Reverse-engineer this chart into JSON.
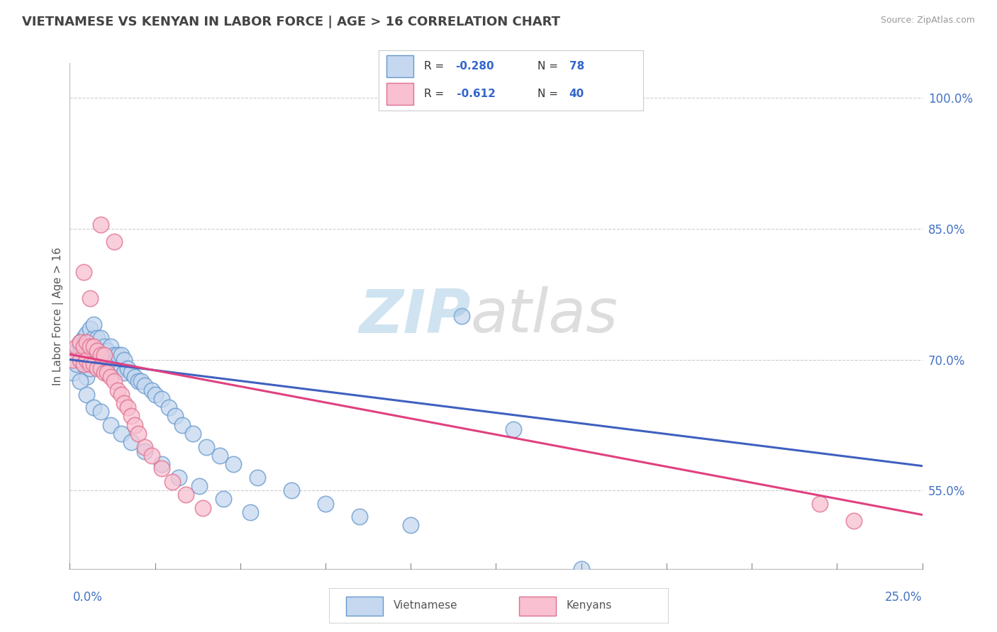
{
  "title": "VIETNAMESE VS KENYAN IN LABOR FORCE | AGE > 16 CORRELATION CHART",
  "source_text": "Source: ZipAtlas.com",
  "ylabel": "In Labor Force | Age > 16",
  "ylabel_ticks": [
    0.55,
    0.7,
    0.85,
    1.0
  ],
  "ylabel_tick_labels": [
    "55.0%",
    "70.0%",
    "85.0%",
    "100.0%"
  ],
  "xlim": [
    0.0,
    0.25
  ],
  "ylim": [
    0.46,
    1.04
  ],
  "r_vietnamese": -0.28,
  "n_vietnamese": 78,
  "r_kenyan": -0.612,
  "n_kenyan": 40,
  "color_vietnamese_face": "#c5d8f0",
  "color_vietnamese_edge": "#6699cc",
  "color_kenyan_face": "#f8c0d0",
  "color_kenyan_edge": "#e07090",
  "line_color_vietnamese": "#4060c0",
  "line_color_kenyan": "#e04080",
  "legend_label_color": "#3366cc",
  "legend_r_label_color": "#333333",
  "watermark_zip_color": "#88bbdd",
  "watermark_atlas_color": "#aaaaaa",
  "background_color": "#ffffff",
  "grid_color": "#cccccc",
  "title_color": "#444444",
  "axis_label_color": "#4472c4",
  "viet_line_x0": 0.0,
  "viet_line_y0": 0.7,
  "viet_line_x1": 0.25,
  "viet_line_y1": 0.578,
  "ken_line_x0": 0.0,
  "ken_line_y0": 0.706,
  "ken_line_x1": 0.25,
  "ken_line_y1": 0.522,
  "vietnamese_x": [
    0.001,
    0.002,
    0.002,
    0.003,
    0.003,
    0.003,
    0.004,
    0.004,
    0.004,
    0.005,
    0.005,
    0.005,
    0.005,
    0.006,
    0.006,
    0.006,
    0.006,
    0.007,
    0.007,
    0.007,
    0.007,
    0.008,
    0.008,
    0.008,
    0.009,
    0.009,
    0.009,
    0.01,
    0.01,
    0.011,
    0.011,
    0.012,
    0.012,
    0.013,
    0.013,
    0.014,
    0.014,
    0.015,
    0.015,
    0.016,
    0.016,
    0.017,
    0.018,
    0.019,
    0.02,
    0.021,
    0.022,
    0.024,
    0.025,
    0.027,
    0.029,
    0.031,
    0.033,
    0.036,
    0.04,
    0.044,
    0.048,
    0.055,
    0.065,
    0.075,
    0.085,
    0.1,
    0.115,
    0.13,
    0.15,
    0.003,
    0.005,
    0.007,
    0.009,
    0.012,
    0.015,
    0.018,
    0.022,
    0.027,
    0.032,
    0.038,
    0.045,
    0.053
  ],
  "vietnamese_y": [
    0.685,
    0.695,
    0.71,
    0.7,
    0.715,
    0.72,
    0.695,
    0.71,
    0.725,
    0.68,
    0.7,
    0.715,
    0.73,
    0.69,
    0.705,
    0.72,
    0.735,
    0.695,
    0.71,
    0.725,
    0.74,
    0.695,
    0.71,
    0.725,
    0.695,
    0.71,
    0.725,
    0.7,
    0.715,
    0.695,
    0.71,
    0.695,
    0.715,
    0.695,
    0.705,
    0.69,
    0.705,
    0.69,
    0.705,
    0.685,
    0.7,
    0.69,
    0.685,
    0.68,
    0.675,
    0.675,
    0.67,
    0.665,
    0.66,
    0.655,
    0.645,
    0.635,
    0.625,
    0.615,
    0.6,
    0.59,
    0.58,
    0.565,
    0.55,
    0.535,
    0.52,
    0.51,
    0.75,
    0.62,
    0.46,
    0.675,
    0.66,
    0.645,
    0.64,
    0.625,
    0.615,
    0.605,
    0.595,
    0.58,
    0.565,
    0.555,
    0.54,
    0.525
  ],
  "kenyan_x": [
    0.001,
    0.002,
    0.003,
    0.003,
    0.004,
    0.004,
    0.005,
    0.005,
    0.006,
    0.006,
    0.007,
    0.007,
    0.008,
    0.008,
    0.009,
    0.009,
    0.01,
    0.01,
    0.011,
    0.012,
    0.013,
    0.014,
    0.015,
    0.016,
    0.017,
    0.018,
    0.019,
    0.02,
    0.022,
    0.024,
    0.027,
    0.03,
    0.034,
    0.039,
    0.004,
    0.006,
    0.009,
    0.013,
    0.22,
    0.23
  ],
  "kenyan_y": [
    0.7,
    0.715,
    0.7,
    0.72,
    0.695,
    0.715,
    0.7,
    0.72,
    0.695,
    0.715,
    0.695,
    0.715,
    0.69,
    0.71,
    0.69,
    0.705,
    0.685,
    0.705,
    0.685,
    0.68,
    0.675,
    0.665,
    0.66,
    0.65,
    0.645,
    0.635,
    0.625,
    0.615,
    0.6,
    0.59,
    0.575,
    0.56,
    0.545,
    0.53,
    0.8,
    0.77,
    0.855,
    0.835,
    0.535,
    0.515
  ]
}
